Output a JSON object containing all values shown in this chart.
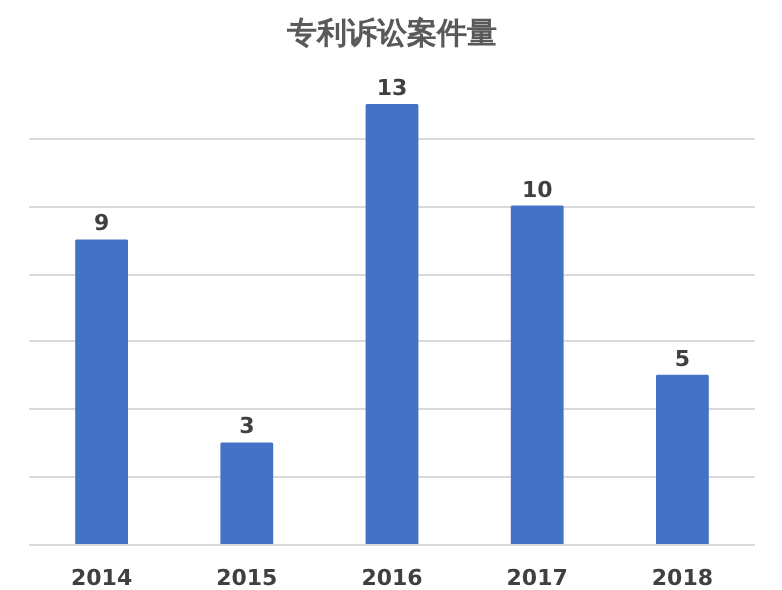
{
  "chart_data": {
    "type": "bar",
    "title": "专利诉讼案件量",
    "categories": [
      "2014",
      "2015",
      "2016",
      "2017",
      "2018"
    ],
    "values": [
      9,
      3,
      13,
      10,
      5
    ],
    "color": "#4472c4",
    "yticks": [
      {
        "value": 0,
        "label": null
      },
      {
        "value": 2,
        "label": null
      },
      {
        "value": 4,
        "label": null
      },
      {
        "value": 6,
        "label": null
      },
      {
        "value": 8,
        "label": null
      },
      {
        "value": 10,
        "label": null
      },
      {
        "value": 12,
        "label": null
      }
    ],
    "grid": "y",
    "tick_labels": "x",
    "data_labels": true
  }
}
